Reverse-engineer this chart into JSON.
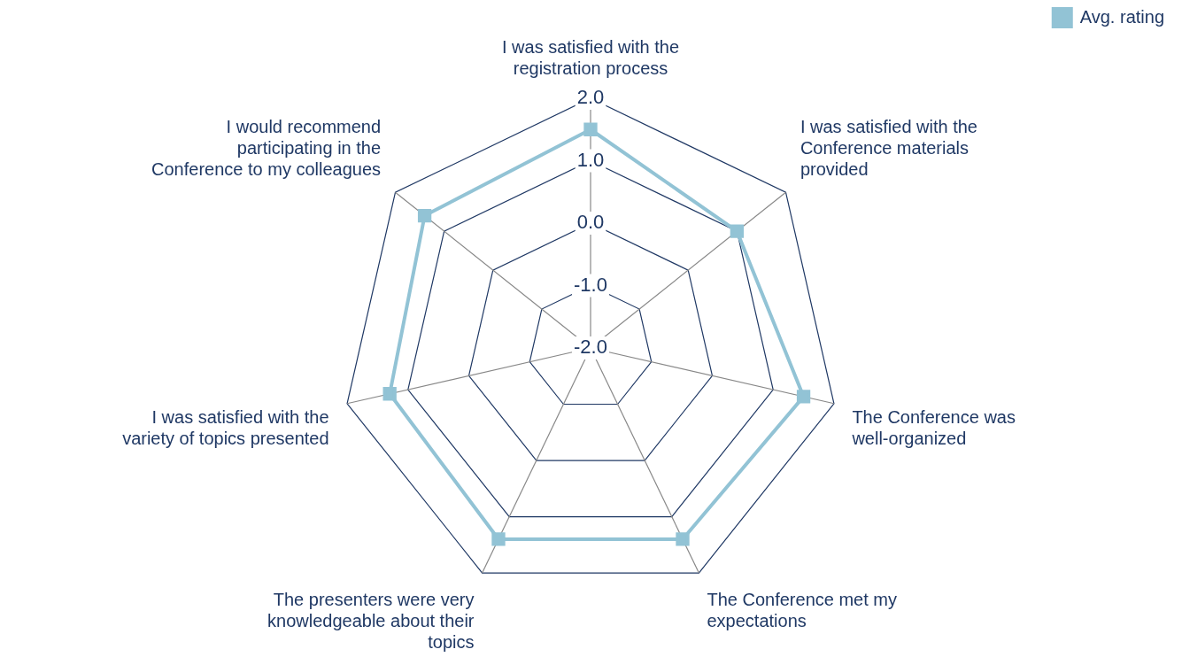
{
  "chart_data": {
    "type": "radar",
    "categories": [
      "I was satisfied with the registration process",
      "I was satisfied with the Conference materials provided",
      "The Conference was well-organized",
      "The Conference met my expectations",
      "The presenters were very knowledgeable about their topics",
      "I was satisfied with the variety of topics presented",
      "I would recommend participating in the Conference to my colleagues"
    ],
    "series": [
      {
        "name": "Avg. rating",
        "color": "#92c3d5",
        "values": [
          1.5,
          1.0,
          1.5,
          1.4,
          1.4,
          1.3,
          1.4
        ]
      }
    ],
    "ylim": [
      -2,
      2
    ],
    "yticks": [
      {
        "value": -2,
        "label": "-2.0"
      },
      {
        "value": -1,
        "label": "-1.0"
      },
      {
        "value": 0,
        "label": "0.0"
      },
      {
        "value": 1,
        "label": "1.0"
      },
      {
        "value": 2,
        "label": "2.0"
      }
    ],
    "grid": true,
    "legend": "top right",
    "marker": "square"
  }
}
